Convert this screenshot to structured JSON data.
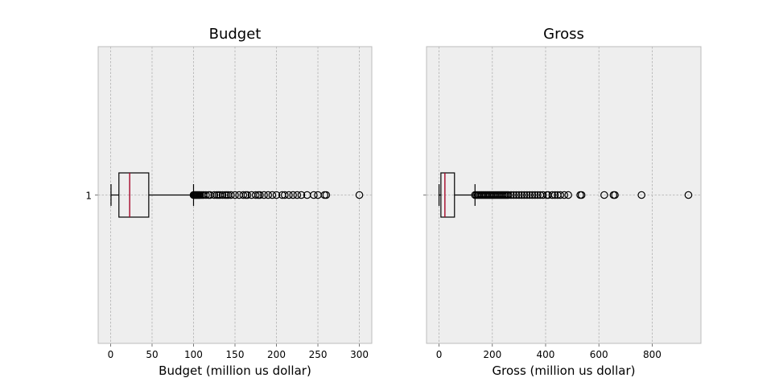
{
  "chart_data": [
    {
      "type": "boxplot",
      "orientation": "horizontal",
      "title": "Budget",
      "xlabel": "Budget (million us dollar)",
      "ylabel": "",
      "xlim": [
        -15,
        315
      ],
      "xticks": [
        0,
        50,
        100,
        150,
        200,
        250,
        300
      ],
      "yticks": [
        "1"
      ],
      "grid": true,
      "box": {
        "category": "1",
        "whisker_low": 0.5,
        "q1": 10,
        "median": 23,
        "q3": 46,
        "whisker_high": 100
      },
      "outliers": [
        100,
        101,
        102,
        103,
        104,
        105,
        106,
        107,
        108,
        110,
        112,
        115,
        118,
        120,
        125,
        128,
        130,
        132,
        135,
        138,
        140,
        142,
        145,
        150,
        155,
        160,
        163,
        165,
        170,
        175,
        178,
        180,
        185,
        190,
        195,
        200,
        207,
        210,
        215,
        220,
        225,
        230,
        237,
        245,
        250,
        258,
        260,
        300
      ]
    },
    {
      "type": "boxplot",
      "orientation": "horizontal",
      "title": "Gross",
      "xlabel": "Gross (million us dollar)",
      "ylabel": "",
      "xlim": [
        -47,
        983
      ],
      "xticks": [
        0,
        200,
        400,
        600,
        800
      ],
      "yticks": [
        "1"
      ],
      "grid": true,
      "box": {
        "category": "1",
        "whisker_low": 0,
        "q1": 7,
        "median": 22,
        "q3": 58,
        "whisker_high": 135
      },
      "outliers": [
        135,
        140,
        145,
        150,
        155,
        160,
        165,
        170,
        175,
        180,
        185,
        190,
        195,
        200,
        205,
        210,
        215,
        220,
        225,
        230,
        235,
        240,
        245,
        250,
        255,
        260,
        270,
        280,
        290,
        300,
        310,
        320,
        330,
        340,
        350,
        360,
        370,
        380,
        390,
        405,
        410,
        425,
        435,
        445,
        455,
        470,
        485,
        530,
        535,
        620,
        655,
        660,
        760,
        936
      ]
    }
  ]
}
